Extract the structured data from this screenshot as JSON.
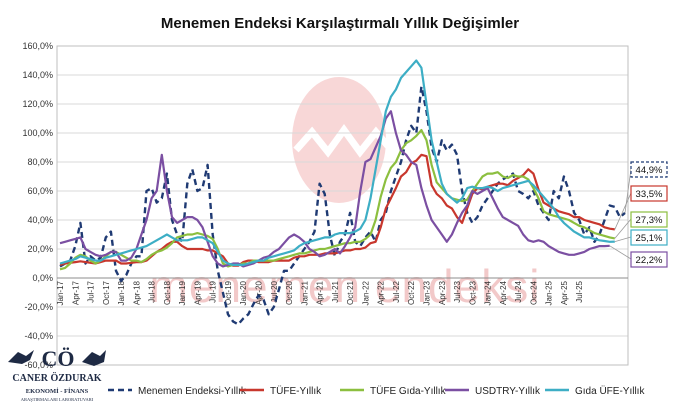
{
  "chart_data": {
    "type": "line",
    "title": "Menemen Endeksi Karşılaştırmalı Yıllık Değişimler",
    "xlabel": "",
    "ylabel": "",
    "ylim": [
      -60,
      160
    ],
    "y_ticks": [
      "-60,0%",
      "-40,0%",
      "-20,0%",
      "0,0%",
      "20,0%",
      "40,0%",
      "60,0%",
      "80,0%",
      "100,0%",
      "120,0%",
      "140,0%",
      "160,0%"
    ],
    "x_tick_labels": [
      "Jan-17",
      "Apr-17",
      "Jul-17",
      "Oct-17",
      "Jan-18",
      "Apr-18",
      "Jul-18",
      "Oct-18",
      "Jan-19",
      "Apr-19",
      "Jul-19",
      "Oct-19",
      "Jan-20",
      "Apr-20",
      "Jul-20",
      "Oct-20",
      "Jan-21",
      "Apr-21",
      "Jul-21",
      "Oct-21",
      "Jan-22",
      "Apr-22",
      "Jul-22",
      "Oct-22",
      "Jan-23",
      "Apr-23",
      "Jul-23",
      "Oct-23",
      "Jan-24",
      "Apr-24",
      "Jul-24",
      "Oct-24",
      "Jan-25",
      "Apr-25",
      "Jul-25"
    ],
    "x_start": "Jan-17",
    "x_end": "Jul-25",
    "grid": true,
    "legend_position": "bottom",
    "series": [
      {
        "name": "Menemen Endeksi-Yıllık",
        "color": "#1f3a73",
        "dash": true,
        "values": [
          8,
          10,
          12,
          22,
          38,
          10,
          15,
          12,
          14,
          28,
          32,
          5,
          -2,
          2,
          10,
          15,
          15,
          60,
          62,
          52,
          55,
          72,
          40,
          30,
          25,
          65,
          75,
          60,
          62,
          78,
          30,
          5,
          -10,
          -25,
          -30,
          -32,
          -28,
          -25,
          -18,
          -12,
          -15,
          -25,
          -20,
          -8,
          5,
          5,
          10,
          15,
          20,
          25,
          32,
          65,
          58,
          30,
          15,
          25,
          30,
          45,
          25,
          22,
          28,
          32,
          25,
          40,
          45,
          60,
          70,
          80,
          95,
          105,
          100,
          132,
          115,
          90,
          80,
          95,
          88,
          92,
          85,
          60,
          45,
          38,
          42,
          50,
          55,
          60,
          65,
          68,
          70,
          72,
          60,
          58,
          55,
          60,
          50,
          45,
          40,
          60,
          55,
          70,
          60,
          45,
          40,
          30,
          35,
          25,
          30,
          40,
          50,
          49,
          42,
          44.9
        ]
      },
      {
        "name": "TÜFE-Yıllık",
        "color": "#c8372d",
        "dash": false,
        "values": [
          9,
          10,
          10.5,
          11,
          11.5,
          11,
          10.5,
          10,
          11,
          12,
          12,
          12,
          10,
          10,
          10.5,
          11,
          11,
          12,
          15,
          18,
          20,
          23,
          25,
          25,
          22,
          20,
          20,
          20,
          20,
          19,
          19,
          17,
          15,
          10,
          8.5,
          8.5,
          11,
          12,
          12,
          11,
          11,
          11,
          12,
          12,
          12,
          12,
          14,
          15,
          15,
          16,
          16,
          16,
          17,
          17,
          17,
          18,
          19,
          19,
          20,
          20,
          21,
          24,
          25,
          35,
          48,
          55,
          62,
          70,
          73,
          79,
          81,
          85,
          84,
          64,
          58,
          55,
          50,
          48,
          42,
          38,
          48,
          58,
          62,
          61,
          63,
          64,
          65,
          65,
          64,
          67,
          69,
          71,
          75,
          72,
          61,
          52,
          50,
          48,
          46,
          45,
          44,
          42,
          42,
          40,
          39,
          38,
          37,
          35,
          34,
          33.5
        ]
      },
      {
        "name": "TÜFE Gıda-Yıllık",
        "color": "#8cbf3f",
        "dash": false,
        "values": [
          6,
          7,
          10,
          14,
          16,
          15,
          12,
          10,
          12,
          15,
          18,
          18,
          16,
          14,
          12,
          12,
          11,
          13,
          16,
          18,
          19,
          21,
          24,
          28,
          29,
          30,
          30,
          31,
          30,
          29,
          27,
          20,
          10,
          8,
          9,
          9,
          10,
          10,
          12,
          12,
          12,
          12,
          12,
          13,
          14,
          15,
          16,
          17,
          17,
          18,
          19,
          20,
          20,
          21,
          22,
          23,
          24,
          24,
          25,
          25,
          27,
          30,
          40,
          56,
          68,
          76,
          80,
          88,
          93,
          95,
          98,
          102,
          95,
          78,
          66,
          62,
          58,
          55,
          54,
          53,
          54,
          60,
          65,
          70,
          72,
          72,
          73,
          70,
          69,
          71,
          70,
          70,
          68,
          62,
          55,
          46,
          44,
          43,
          42,
          41,
          40,
          38,
          36,
          35,
          33,
          31,
          30,
          29,
          28,
          27.3
        ]
      },
      {
        "name": "USDTRY-Yıllık",
        "color": "#7b4fa2",
        "dash": false,
        "values": [
          24,
          25,
          26,
          27,
          28,
          20,
          18,
          16,
          15,
          16,
          18,
          18,
          12,
          12,
          14,
          20,
          30,
          40,
          55,
          60,
          85,
          60,
          42,
          38,
          40,
          42,
          42,
          40,
          35,
          25,
          15,
          10,
          8,
          9,
          10,
          10,
          8,
          9,
          10,
          12,
          14,
          15,
          18,
          20,
          24,
          28,
          30,
          28,
          25,
          20,
          18,
          15,
          16,
          18,
          20,
          17,
          22,
          28,
          35,
          60,
          80,
          82,
          90,
          98,
          110,
          115,
          100,
          88,
          85,
          80,
          78,
          62,
          50,
          40,
          35,
          30,
          25,
          30,
          38,
          45,
          50,
          60,
          58,
          60,
          62,
          55,
          48,
          42,
          40,
          38,
          36,
          30,
          26,
          25,
          26,
          25,
          22,
          20,
          18,
          17,
          16,
          16,
          17,
          18,
          20,
          21,
          22,
          22,
          22.2
        ]
      },
      {
        "name": "Gıda ÜFE-Yıllık",
        "color": "#3daec5",
        "dash": false,
        "values": [
          10,
          11,
          12,
          13,
          15,
          14,
          13,
          12,
          12,
          14,
          15,
          16,
          17,
          18,
          19,
          20,
          21,
          22,
          24,
          26,
          28,
          30,
          28,
          26,
          26,
          26,
          27,
          28,
          28,
          26,
          24,
          18,
          12,
          10,
          9,
          9,
          9,
          10,
          11,
          12,
          12,
          14,
          15,
          16,
          17,
          18,
          19,
          22,
          24,
          25,
          26,
          27,
          28,
          28,
          30,
          31,
          31,
          31,
          32,
          34,
          40,
          55,
          75,
          95,
          115,
          125,
          130,
          138,
          142,
          146,
          150,
          145,
          120,
          95,
          80,
          65,
          58,
          55,
          52,
          55,
          62,
          63,
          62,
          62,
          63,
          62,
          60,
          62,
          63,
          64,
          65,
          66,
          67,
          64,
          60,
          56,
          52,
          48,
          42,
          38,
          35,
          32,
          30,
          28,
          28,
          27,
          26,
          25.5,
          25,
          25.1
        ]
      }
    ],
    "callouts": [
      "44,9%",
      "33,5%",
      "27,3%",
      "25,1%",
      "22,2%"
    ]
  },
  "watermark": "menemen endeksi",
  "logo": {
    "monogram": "CÖ",
    "name": "CANER ÖZDURAK",
    "tagline": "EKONOMİ - FİNANS",
    "subtitle": "ARAŞTIRMALARI LABORATUVARI"
  }
}
